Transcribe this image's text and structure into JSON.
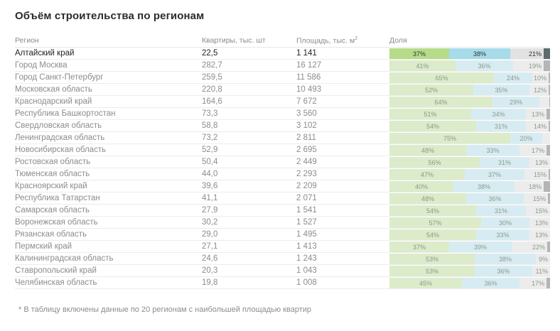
{
  "title": "Объём строительства по регионам",
  "headers": {
    "region": "Регион",
    "apartments": "Квартиры, тыс. шт",
    "area": "Площадь, тыс. м",
    "area_sup": "2",
    "share": "Доля"
  },
  "rows": [
    {
      "region": "Алтайский край",
      "apartments": "22,5",
      "area": "1 141",
      "shares": [
        37,
        38,
        21,
        4
      ],
      "labels": [
        "37%",
        "38%",
        "21%",
        ""
      ]
    },
    {
      "region": "Город Москва",
      "apartments": "282,7",
      "area": "16 127",
      "shares": [
        41,
        36,
        19,
        4
      ],
      "labels": [
        "41%",
        "36%",
        "19%",
        ""
      ]
    },
    {
      "region": "Город Санкт-Петербург",
      "apartments": "259,5",
      "area": "11 586",
      "shares": [
        65,
        24,
        10,
        1
      ],
      "labels": [
        "65%",
        "24%",
        "10%",
        ""
      ]
    },
    {
      "region": "Московская область",
      "apartments": "220,8",
      "area": "10 493",
      "shares": [
        52,
        35,
        12,
        1
      ],
      "labels": [
        "52%",
        "35%",
        "12%",
        ""
      ]
    },
    {
      "region": "Краснодарский край",
      "apartments": "164,6",
      "area": "7 672",
      "shares": [
        64,
        29,
        6,
        1
      ],
      "labels": [
        "64%",
        "29%",
        "",
        ""
      ]
    },
    {
      "region": "Республика Башкортостан",
      "apartments": "73,3",
      "area": "3 560",
      "shares": [
        51,
        34,
        13,
        2
      ],
      "labels": [
        "51%",
        "34%",
        "13%",
        ""
      ]
    },
    {
      "region": "Свердловская область",
      "apartments": "58,8",
      "area": "3 102",
      "shares": [
        54,
        31,
        14,
        1
      ],
      "labels": [
        "54%",
        "31%",
        "14%",
        ""
      ]
    },
    {
      "region": "Ленинградская область",
      "apartments": "73,2",
      "area": "2 811",
      "shares": [
        75,
        20,
        5,
        0
      ],
      "labels": [
        "75%",
        "20%",
        "",
        ""
      ]
    },
    {
      "region": "Новосибирская область",
      "apartments": "52,9",
      "area": "2 695",
      "shares": [
        48,
        33,
        17,
        2
      ],
      "labels": [
        "48%",
        "33%",
        "17%",
        ""
      ]
    },
    {
      "region": "Ростовская область",
      "apartments": "50,4",
      "area": "2 449",
      "shares": [
        56,
        31,
        13,
        0
      ],
      "labels": [
        "56%",
        "31%",
        "13%",
        ""
      ]
    },
    {
      "region": "Тюменская область",
      "apartments": "44,0",
      "area": "2 293",
      "shares": [
        47,
        37,
        15,
        1
      ],
      "labels": [
        "47%",
        "37%",
        "15%",
        ""
      ]
    },
    {
      "region": "Красноярский край",
      "apartments": "39,6",
      "area": "2 209",
      "shares": [
        40,
        38,
        18,
        4
      ],
      "labels": [
        "40%",
        "38%",
        "18%",
        ""
      ]
    },
    {
      "region": "Республика Татарстан",
      "apartments": "41,1",
      "area": "2 071",
      "shares": [
        48,
        36,
        15,
        1
      ],
      "labels": [
        "48%",
        "36%",
        "15%",
        ""
      ]
    },
    {
      "region": "Самарская область",
      "apartments": "27,9",
      "area": "1 541",
      "shares": [
        54,
        31,
        15,
        0
      ],
      "labels": [
        "54%",
        "31%",
        "15%",
        ""
      ]
    },
    {
      "region": "Воронежская область",
      "apartments": "30,2",
      "area": "1 527",
      "shares": [
        57,
        30,
        13,
        0
      ],
      "labels": [
        "57%",
        "30%",
        "13%",
        ""
      ]
    },
    {
      "region": "Рязанская область",
      "apartments": "29,0",
      "area": "1 495",
      "shares": [
        54,
        33,
        13,
        0
      ],
      "labels": [
        "54%",
        "33%",
        "13%",
        ""
      ]
    },
    {
      "region": "Пермский край",
      "apartments": "27,1",
      "area": "1 413",
      "shares": [
        37,
        39,
        22,
        2
      ],
      "labels": [
        "37%",
        "39%",
        "22%",
        ""
      ]
    },
    {
      "region": "Калининградская область",
      "apartments": "24,6",
      "area": "1 243",
      "shares": [
        53,
        38,
        9,
        0
      ],
      "labels": [
        "53%",
        "38%",
        "9%",
        ""
      ]
    },
    {
      "region": "Ставропольский край",
      "apartments": "20,3",
      "area": "1 043",
      "shares": [
        53,
        36,
        11,
        0
      ],
      "labels": [
        "53%",
        "36%",
        "11%",
        ""
      ]
    },
    {
      "region": "Челябинская область",
      "apartments": "19,8",
      "area": "1 008",
      "shares": [
        45,
        36,
        17,
        2
      ],
      "labels": [
        "45%",
        "36%",
        "17%",
        ""
      ]
    }
  ],
  "footnote": "* В таблицу включены данные по 20 регионам с наибольшей площадью квартир",
  "colors": {
    "share_1": "#dcebc9",
    "share_2": "#d7ecf2",
    "share_3": "#ececec",
    "share_4": "#b5b5b5",
    "highlight_1": "#b6dc8a",
    "highlight_2": "#a6dbe9",
    "highlight_4": "#5f6b6b"
  }
}
